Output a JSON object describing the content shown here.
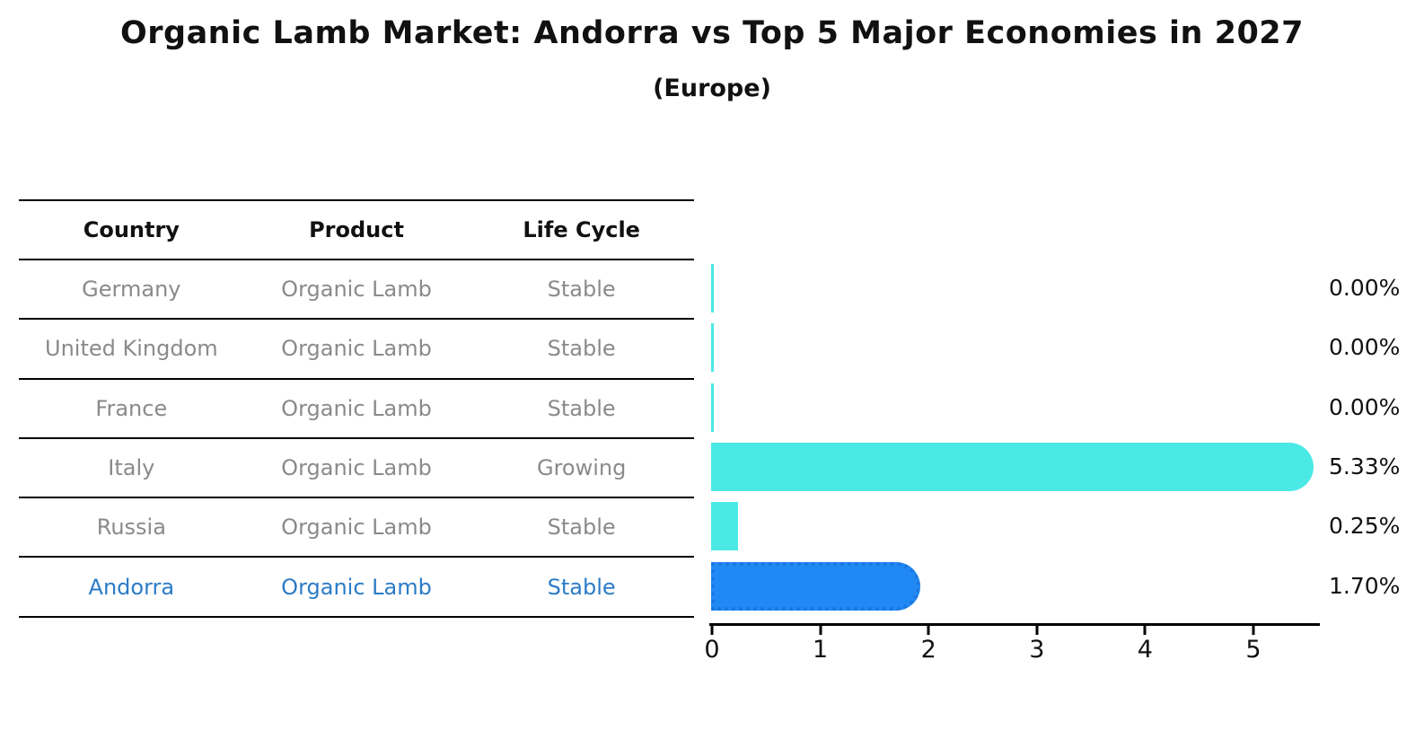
{
  "title": "Organic Lamb Market: Andorra vs Top 5 Major Economies in 2027",
  "subtitle": "(Europe)",
  "table": {
    "headers": [
      "Country",
      "Product",
      "Life Cycle"
    ],
    "rows": [
      {
        "country": "Germany",
        "product": "Organic Lamb",
        "life_cycle": "Stable",
        "highlight": false
      },
      {
        "country": "United Kingdom",
        "product": "Organic Lamb",
        "life_cycle": "Stable",
        "highlight": false
      },
      {
        "country": "France",
        "product": "Organic Lamb",
        "life_cycle": "Stable",
        "highlight": false
      },
      {
        "country": "Italy",
        "product": "Organic Lamb",
        "life_cycle": "Growing",
        "highlight": false
      },
      {
        "country": "Russia",
        "product": "Organic Lamb",
        "life_cycle": "Stable",
        "highlight": false
      },
      {
        "country": "Andorra",
        "product": "Organic Lamb",
        "life_cycle": "Stable",
        "highlight": true
      }
    ]
  },
  "chart_data": {
    "type": "bar",
    "orientation": "horizontal",
    "title": "Organic Lamb Market: Andorra vs Top 5 Major Economies in 2027",
    "subtitle": "(Europe)",
    "categories": [
      "Germany",
      "United Kingdom",
      "France",
      "Italy",
      "Russia",
      "Andorra"
    ],
    "values": [
      0.0,
      0.0,
      0.0,
      5.33,
      0.25,
      1.7
    ],
    "value_labels": [
      "0.00%",
      "0.00%",
      "0.00%",
      "5.33%",
      "0.25%",
      "1.70%"
    ],
    "x_tick_labels": [
      "0",
      "1",
      "2",
      "3",
      "4",
      "5"
    ],
    "xlim": [
      0,
      5.5
    ],
    "grid": false,
    "legend": false,
    "highlight_index": 5,
    "bar_color": "#4be9e6",
    "highlight_bar_color": "#2189f4",
    "highlight_border_color": "#1b76e0",
    "highlight_text_color": "#2b7bc7",
    "row_text_color": "#8a8a8a"
  }
}
